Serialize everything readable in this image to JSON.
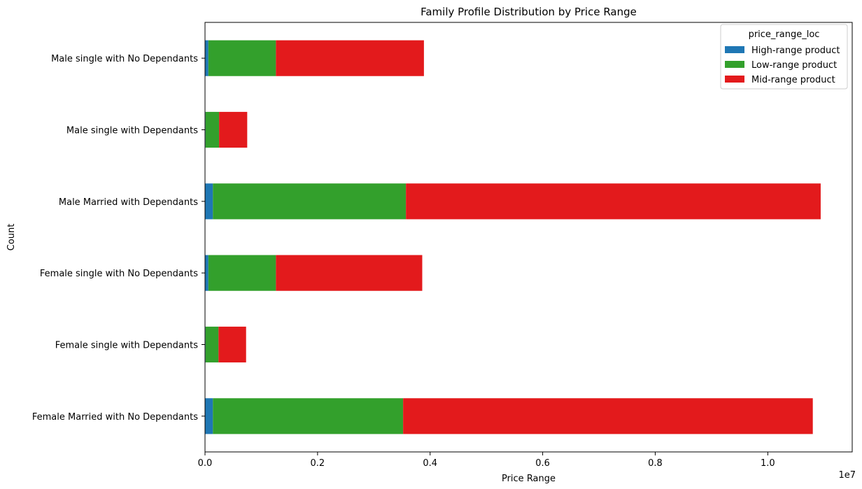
{
  "chart_data": {
    "type": "bar",
    "orientation": "horizontal",
    "stacked": true,
    "title": "Family Profile Distribution by Price Range",
    "xlabel": "Price Range",
    "ylabel": "Count",
    "x_offset_label": "1e7",
    "xlim": [
      0,
      1.15
    ],
    "x_scale_multiplier": 10000000,
    "x_ticks": [
      0.0,
      0.2,
      0.4,
      0.6,
      0.8,
      1.0
    ],
    "x_tick_labels": [
      "0.0",
      "0.2",
      "0.4",
      "0.6",
      "0.8",
      "1.0"
    ],
    "categories": [
      "Male single with No Dependants",
      "Male single with Dependants",
      "Male Married with Dependants",
      "Female single with No Dependants",
      "Female single with Dependants",
      "Female Married with No Dependants"
    ],
    "series": [
      {
        "name": "High-range product",
        "color": "#1f77b4",
        "values": [
          0.006,
          0.001,
          0.014,
          0.006,
          0.001,
          0.014
        ]
      },
      {
        "name": "Low-range product",
        "color": "#33a02c",
        "values": [
          0.12,
          0.024,
          0.343,
          0.12,
          0.023,
          0.338
        ]
      },
      {
        "name": "Mid-range product",
        "color": "#e31a1c",
        "values": [
          0.263,
          0.05,
          0.737,
          0.26,
          0.049,
          0.728
        ]
      }
    ],
    "legend": {
      "title": "price_range_loc",
      "position": "top-right"
    },
    "grid": false
  }
}
